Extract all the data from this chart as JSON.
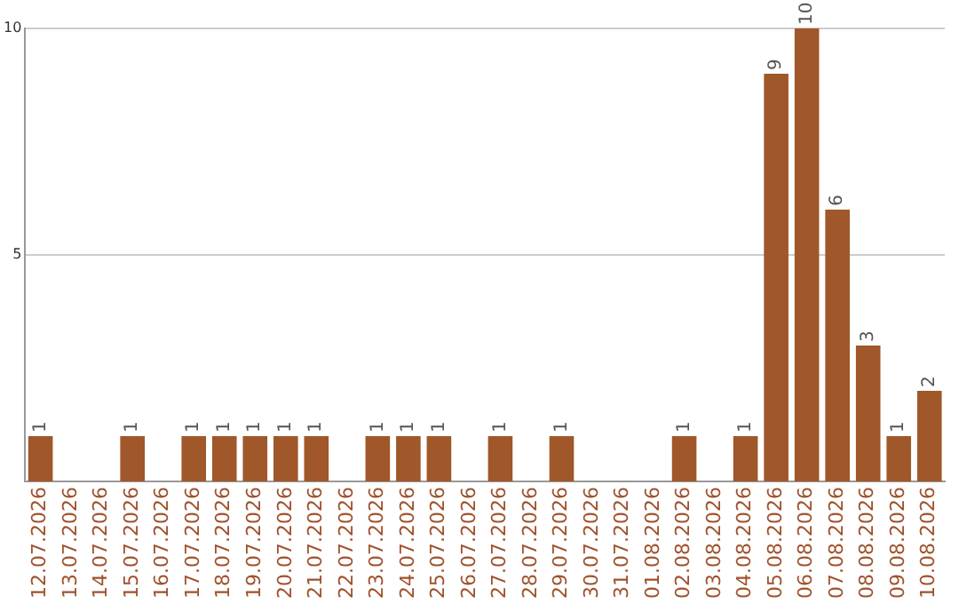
{
  "chart_data": {
    "type": "bar",
    "categories": [
      "12.07.2026",
      "13.07.2026",
      "14.07.2026",
      "15.07.2026",
      "16.07.2026",
      "17.07.2026",
      "18.07.2026",
      "19.07.2026",
      "20.07.2026",
      "21.07.2026",
      "22.07.2026",
      "23.07.2026",
      "24.07.2026",
      "25.07.2026",
      "26.07.2026",
      "27.07.2026",
      "28.07.2026",
      "29.07.2026",
      "30.07.2026",
      "31.07.2026",
      "01.08.2026",
      "02.08.2026",
      "03.08.2026",
      "04.08.2026",
      "05.08.2026",
      "06.08.2026",
      "07.08.2026",
      "08.08.2026",
      "09.08.2026",
      "10.08.2026"
    ],
    "values": [
      1,
      0,
      0,
      1,
      0,
      1,
      1,
      1,
      1,
      1,
      0,
      1,
      1,
      1,
      0,
      1,
      0,
      1,
      0,
      0,
      0,
      1,
      0,
      1,
      9,
      10,
      6,
      3,
      1,
      2
    ],
    "value_labels": [
      "1",
      null,
      null,
      "1",
      null,
      "1",
      "1",
      "1",
      "1",
      "1",
      null,
      "1",
      "1",
      "1",
      null,
      "1",
      null,
      "1",
      null,
      null,
      null,
      "1",
      null,
      "1",
      "9",
      "10",
      "6",
      "3",
      "1",
      "2"
    ],
    "color": "#a0572a",
    "ylim": [
      0,
      10
    ],
    "yticks": [
      5,
      10
    ],
    "grid": "y",
    "legend": false
  }
}
